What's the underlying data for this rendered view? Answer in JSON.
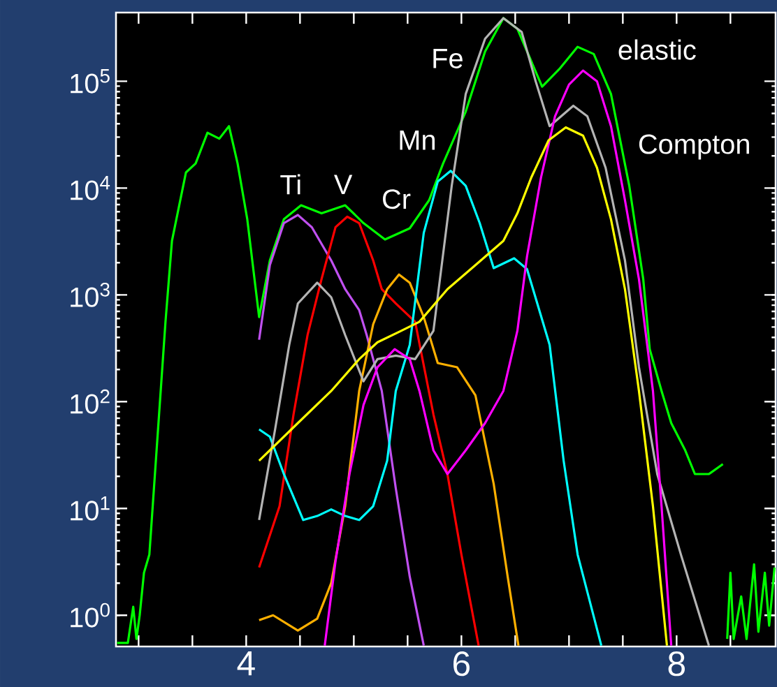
{
  "chart_data": {
    "type": "line",
    "log": "y",
    "xlim": [
      2.79,
      8.92
    ],
    "ylim": [
      0.51,
      440000
    ],
    "xticks": [
      {
        "value": 3,
        "label": null
      },
      {
        "value": 3.5,
        "label": null
      },
      4,
      {
        "value": 4.5,
        "label": null
      },
      {
        "value": 5,
        "label": null
      },
      {
        "value": 5.5,
        "label": null
      },
      6,
      {
        "value": 6.5,
        "label": null
      },
      {
        "value": 7,
        "label": null
      },
      {
        "value": 7.5,
        "label": null
      },
      8,
      {
        "value": 8.5,
        "label": null
      }
    ],
    "yticks": [
      {
        "value": 1,
        "label": "10$^{0}$"
      },
      {
        "value": 10,
        "label": "10$^{1}$"
      },
      {
        "value": 100,
        "label": "10$^{2}$"
      },
      {
        "value": 1000,
        "label": "10$^{3}$"
      },
      {
        "value": 10000,
        "label": "10$^{4}$"
      },
      {
        "value": 100000,
        "label": "10$^{5}$"
      }
    ],
    "annotations": [
      {
        "text": "Ti",
        "x": 4.48,
        "y": 5600
      },
      {
        "text": "V",
        "x": 4.94,
        "y": 5400
      },
      {
        "text": "Cr",
        "x": 5.42,
        "y": 1550
      },
      {
        "text": "Mn",
        "x": 5.9,
        "y": 14500
      },
      {
        "text": "Fe",
        "x": 6.39,
        "y": 390000
      },
      {
        "text": "elastic",
        "x": 7.13,
        "y": 126000
      },
      {
        "text": "Compton",
        "x": 6.97,
        "y": 37000
      }
    ],
    "series": [
      {
        "color": "#00ff00",
        "x": [
          2.8,
          2.9,
          2.95,
          2.98,
          3.01,
          3.05,
          3.1,
          3.25,
          3.31,
          3.44,
          3.53,
          3.64,
          3.75,
          3.84,
          3.92,
          4.01,
          4.12,
          4.22,
          4.35,
          4.51,
          4.7,
          4.92,
          5.09,
          5.29,
          5.52,
          5.7,
          5.83,
          6.04,
          6.22,
          6.39,
          6.52,
          6.75,
          6.91,
          7.08,
          7.23,
          7.39,
          7.56,
          7.69,
          7.75,
          7.86,
          7.95,
          8.08,
          8.17,
          8.3,
          8.43,
          8.45,
          8.47,
          8.5,
          8.53,
          8.6,
          8.65,
          8.72,
          8.76,
          8.82,
          8.86,
          8.91
        ],
        "values": [
          0.55,
          0.55,
          1.2,
          0.6,
          1.0,
          2.5,
          3.7,
          560,
          3200,
          14000,
          17000,
          33000,
          29000,
          38000,
          17000,
          5100,
          620,
          2100,
          5100,
          6900,
          5800,
          6900,
          4700,
          3300,
          4200,
          7700,
          17000,
          52000,
          190000,
          390000,
          310000,
          89000,
          130000,
          210000,
          180000,
          76000,
          10500,
          1400,
          310,
          126,
          63,
          35,
          21,
          21,
          26,
          null,
          0.6,
          2.5,
          0.6,
          1.5,
          0.6,
          3,
          0.7,
          2.5,
          0.8,
          2.8
        ]
      },
      {
        "color": "#c050f0",
        "x": [
          4.12,
          4.22,
          4.35,
          4.48,
          4.61,
          4.79,
          4.92,
          5.05,
          5.12,
          5.26,
          5.39,
          5.52,
          5.65
        ],
        "values": [
          380,
          1900,
          4700,
          5600,
          4300,
          2100,
          1130,
          720,
          420,
          126,
          15.5,
          2.3,
          0.52
        ]
      },
      {
        "color": "#ff0000",
        "x": [
          4.12,
          4.31,
          4.44,
          4.57,
          4.7,
          4.83,
          4.94,
          5.05,
          5.18,
          5.26,
          5.39,
          5.57,
          5.74,
          5.87,
          6.0,
          6.16
        ],
        "values": [
          2.8,
          10.5,
          76,
          420,
          1400,
          4300,
          5400,
          4700,
          2100,
          1130,
          830,
          560,
          76,
          21,
          3.7,
          0.52
        ]
      },
      {
        "color": "#ffb000",
        "x": [
          4.12,
          4.25,
          4.48,
          4.66,
          4.79,
          4.92,
          5.05,
          5.18,
          5.31,
          5.42,
          5.52,
          5.65,
          5.78,
          5.96,
          6.13,
          6.3,
          6.43,
          6.53
        ],
        "values": [
          0.9,
          1.0,
          0.72,
          0.93,
          2.0,
          10.5,
          126,
          530,
          1130,
          1550,
          1300,
          620,
          230,
          210,
          115,
          17,
          2.3,
          0.52
        ]
      },
      {
        "color": "#00ffff",
        "x": [
          4.12,
          4.22,
          4.35,
          4.53,
          4.66,
          4.79,
          4.92,
          5.05,
          5.18,
          5.31,
          5.39,
          5.52,
          5.65,
          5.78,
          5.9,
          6.04,
          6.17,
          6.3,
          6.49,
          6.61,
          6.82,
          6.95,
          7.08,
          7.3
        ],
        "values": [
          55,
          47,
          21,
          7.8,
          8.5,
          9.8,
          8.5,
          7.8,
          10.5,
          28,
          126,
          340,
          3800,
          11500,
          14500,
          10500,
          4700,
          1780,
          2200,
          1740,
          340,
          28,
          3.7,
          0.52
        ]
      },
      {
        "color": "#b4b4b4",
        "x": [
          4.12,
          4.27,
          4.4,
          4.48,
          4.66,
          4.79,
          4.92,
          5.09,
          5.22,
          5.39,
          5.57,
          5.74,
          5.91,
          6.04,
          6.22,
          6.39,
          6.56,
          6.69,
          6.82,
          7.04,
          7.17,
          7.34,
          7.52,
          7.65,
          7.82,
          8.04,
          8.3
        ],
        "values": [
          7.8,
          56,
          340,
          830,
          1300,
          950,
          420,
          155,
          250,
          270,
          250,
          460,
          10500,
          76000,
          250000,
          390000,
          290000,
          100000,
          38000,
          59000,
          47000,
          15500,
          2100,
          210,
          21,
          3.7,
          0.52
        ]
      },
      {
        "color": "#ff00ff",
        "x": [
          4.73,
          4.83,
          4.96,
          5.09,
          5.22,
          5.38,
          5.52,
          5.61,
          5.74,
          5.87,
          6.04,
          6.22,
          6.39,
          6.52,
          6.61,
          6.74,
          6.87,
          7.0,
          7.13,
          7.26,
          7.39,
          7.52,
          7.65,
          7.78,
          7.86,
          7.95
        ],
        "values": [
          0.52,
          3.2,
          21,
          93,
          210,
          310,
          250,
          126,
          35,
          21,
          35,
          63,
          126,
          460,
          2300,
          12600,
          47000,
          93000,
          126000,
          100000,
          38000,
          7700,
          1400,
          126,
          10.5,
          0.52
        ]
      },
      {
        "color": "#ffff00",
        "x": [
          4.12,
          4.48,
          4.79,
          5.05,
          5.22,
          5.44,
          5.61,
          5.87,
          6.13,
          6.39,
          6.52,
          6.65,
          6.81,
          6.97,
          7.13,
          7.26,
          7.39,
          7.52,
          7.65,
          7.78,
          7.91
        ],
        "values": [
          28,
          63,
          126,
          250,
          360,
          460,
          560,
          1130,
          1900,
          3200,
          5800,
          12600,
          28000,
          37000,
          31000,
          15500,
          5100,
          1130,
          126,
          10.5,
          0.52
        ]
      }
    ]
  }
}
